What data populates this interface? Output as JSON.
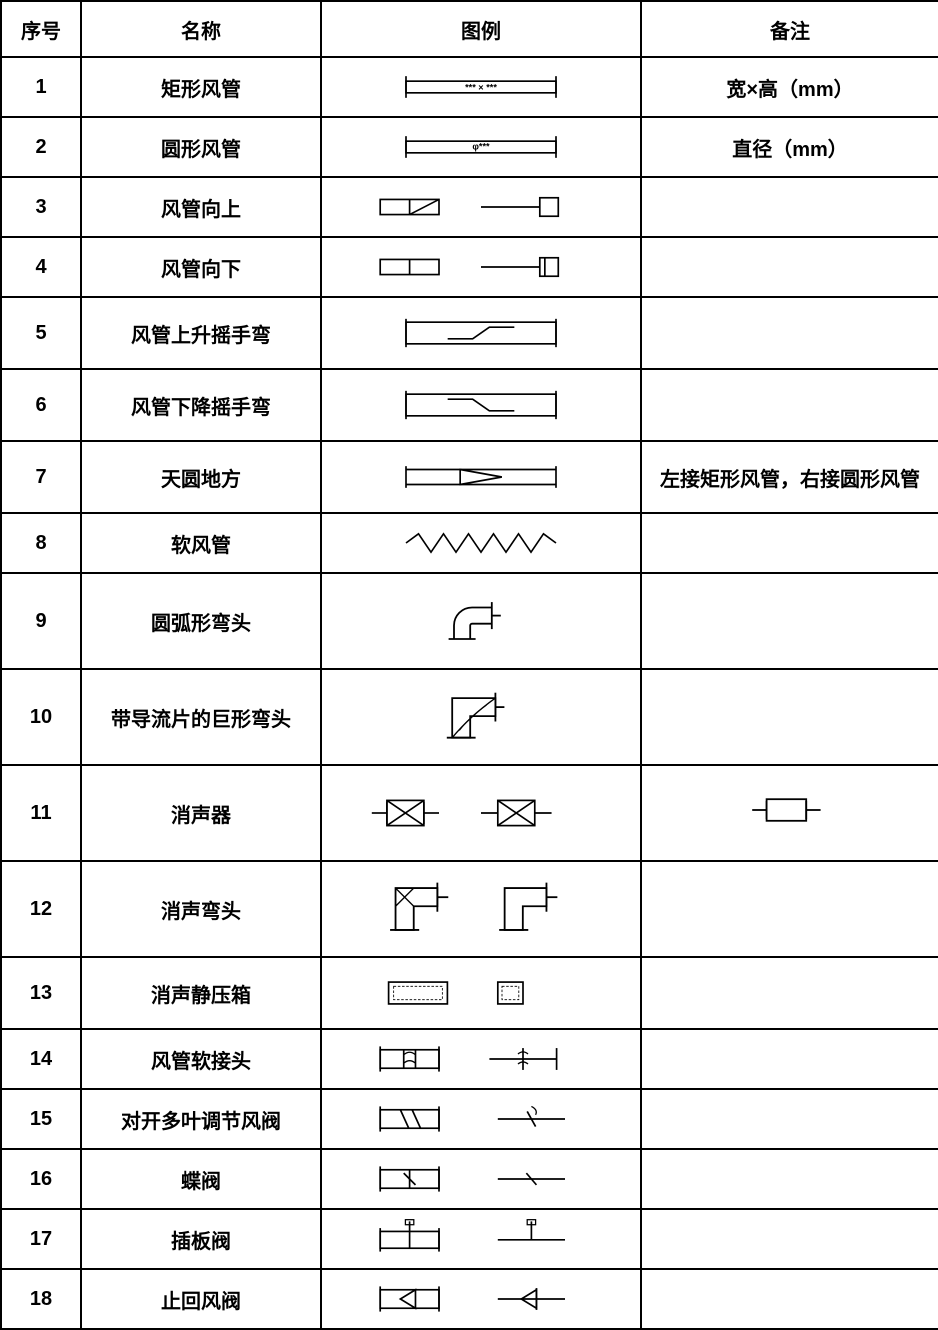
{
  "table": {
    "headers": {
      "seq": "序号",
      "name": "名称",
      "legend": "图例",
      "note": "备注"
    },
    "rows": [
      {
        "seq": "1",
        "name": "矩形风管",
        "note": "宽×高（mm）",
        "symbol": "rect-duct"
      },
      {
        "seq": "2",
        "name": "圆形风管",
        "note": "直径（mm）",
        "symbol": "round-duct"
      },
      {
        "seq": "3",
        "name": "风管向上",
        "note": "",
        "symbol": "duct-up"
      },
      {
        "seq": "4",
        "name": "风管向下",
        "note": "",
        "symbol": "duct-down"
      },
      {
        "seq": "5",
        "name": "风管上升摇手弯",
        "note": "",
        "symbol": "rise-bend"
      },
      {
        "seq": "6",
        "name": "风管下降摇手弯",
        "note": "",
        "symbol": "drop-bend"
      },
      {
        "seq": "7",
        "name": "天圆地方",
        "note": "左接矩形风管，右接圆形风管",
        "symbol": "square-to-round"
      },
      {
        "seq": "8",
        "name": "软风管",
        "note": "",
        "symbol": "flex-duct"
      },
      {
        "seq": "9",
        "name": "圆弧形弯头",
        "note": "",
        "symbol": "arc-elbow"
      },
      {
        "seq": "10",
        "name": "带导流片的巨形弯头",
        "note": "",
        "symbol": "vaned-elbow"
      },
      {
        "seq": "11",
        "name": "消声器",
        "note": "",
        "symbol": "silencer",
        "noteSymbol": "silencer-small"
      },
      {
        "seq": "12",
        "name": "消声弯头",
        "note": "",
        "symbol": "silencer-elbow"
      },
      {
        "seq": "13",
        "name": "消声静压箱",
        "note": "",
        "symbol": "plenum-box"
      },
      {
        "seq": "14",
        "name": "风管软接头",
        "note": "",
        "symbol": "flex-connector"
      },
      {
        "seq": "15",
        "name": "对开多叶调节风阀",
        "note": "",
        "symbol": "opposed-damper"
      },
      {
        "seq": "16",
        "name": "蝶阀",
        "note": "",
        "symbol": "butterfly"
      },
      {
        "seq": "17",
        "name": "插板阀",
        "note": "",
        "symbol": "slide-gate"
      },
      {
        "seq": "18",
        "name": "止回风阀",
        "note": "",
        "symbol": "check-damper"
      }
    ],
    "style": {
      "border_color": "#000000",
      "text_color": "#000000",
      "background": "#ffffff",
      "font_size_header": 20,
      "font_size_cell": 20,
      "stroke_width": 2
    },
    "rowHeights": {
      "1": "std",
      "2": "std",
      "3": "std",
      "4": "std",
      "5": "med",
      "6": "med",
      "7": "med",
      "8": "std",
      "9": "tall",
      "10": "tall",
      "11": "tall",
      "12": "tall",
      "13": "med",
      "14": "std",
      "15": "std",
      "16": "std",
      "17": "std",
      "18": "std"
    }
  }
}
